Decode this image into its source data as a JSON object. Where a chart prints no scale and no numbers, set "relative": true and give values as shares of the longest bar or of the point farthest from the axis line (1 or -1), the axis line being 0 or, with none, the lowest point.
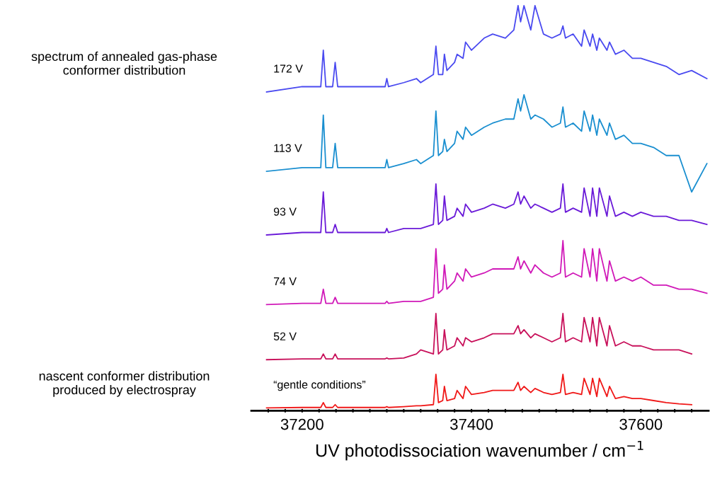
{
  "chart_data": {
    "type": "line",
    "relative": true,
    "xlabel": "UV photodissociation wavenumber / cm$^{−1}$",
    "annotations": [
      "spectrum of annealed gas-phase\nconformer distribution",
      "nascent conformer distribution\nproduced by electrospray"
    ],
    "xlim": [
      37140,
      37680
    ],
    "xticks": [
      {
        "value": 37160,
        "label": null
      },
      {
        "value": 37180,
        "label": null
      },
      37200,
      {
        "value": 37220,
        "label": null
      },
      {
        "value": 37240,
        "label": null
      },
      {
        "value": 37260,
        "label": null
      },
      {
        "value": 37280,
        "label": null
      },
      {
        "value": 37300,
        "label": null
      },
      {
        "value": 37320,
        "label": null
      },
      {
        "value": 37340,
        "label": null
      },
      {
        "value": 37360,
        "label": null
      },
      {
        "value": 37380,
        "label": null
      },
      37400,
      {
        "value": 37420,
        "label": null
      },
      {
        "value": 37440,
        "label": null
      },
      {
        "value": 37460,
        "label": null
      },
      {
        "value": 37480,
        "label": null
      },
      {
        "value": 37500,
        "label": null
      },
      {
        "value": 37520,
        "label": null
      },
      {
        "value": 37540,
        "label": null
      },
      {
        "value": 37560,
        "label": null
      },
      {
        "value": 37580,
        "label": null
      },
      37600,
      {
        "value": 37620,
        "label": null
      },
      {
        "value": 37640,
        "label": null
      },
      {
        "value": 37660,
        "label": null
      }
    ],
    "grid": false,
    "legend": false,
    "marker": "none",
    "line_style": "solid",
    "x": [
      37158,
      37200,
      37222,
      37225,
      37228,
      37236,
      37239,
      37242,
      37270,
      37298,
      37300,
      37302,
      37320,
      37335,
      37340,
      37355,
      37358,
      37361,
      37366,
      37368,
      37371,
      37380,
      37383,
      37390,
      37393,
      37400,
      37415,
      37425,
      37440,
      37450,
      37455,
      37458,
      37462,
      37470,
      37475,
      37485,
      37495,
      37505,
      37508,
      37511,
      37520,
      37530,
      37533,
      37540,
      37543,
      37548,
      37551,
      37560,
      37563,
      37570,
      37580,
      37590,
      37600,
      37615,
      37630,
      37645,
      37660,
      37678
    ],
    "series": [
      {
        "name": "172 V",
        "color": "#4a4af0",
        "values": [
          0.787,
          0.8,
          0.8,
          0.89,
          0.8,
          0.8,
          0.86,
          0.8,
          0.8,
          0.8,
          0.82,
          0.8,
          0.81,
          0.82,
          0.81,
          0.83,
          0.9,
          0.83,
          0.83,
          0.88,
          0.84,
          0.86,
          0.88,
          0.87,
          0.91,
          0.89,
          0.92,
          0.93,
          0.92,
          0.94,
          1.0,
          0.96,
          1.0,
          0.94,
          1.0,
          0.93,
          0.92,
          0.93,
          0.95,
          0.92,
          0.93,
          0.9,
          0.94,
          0.9,
          0.93,
          0.89,
          0.92,
          0.89,
          0.91,
          0.88,
          0.89,
          0.87,
          0.87,
          0.86,
          0.85,
          0.83,
          0.84,
          0.82
        ]
      },
      {
        "name": "113 V",
        "color": "#1a8fd0",
        "values": [
          0.591,
          0.6,
          0.6,
          0.73,
          0.6,
          0.6,
          0.66,
          0.6,
          0.6,
          0.6,
          0.62,
          0.6,
          0.61,
          0.62,
          0.61,
          0.63,
          0.74,
          0.63,
          0.64,
          0.67,
          0.64,
          0.66,
          0.69,
          0.67,
          0.7,
          0.68,
          0.7,
          0.71,
          0.72,
          0.72,
          0.77,
          0.74,
          0.78,
          0.72,
          0.73,
          0.72,
          0.7,
          0.71,
          0.75,
          0.7,
          0.71,
          0.69,
          0.74,
          0.69,
          0.73,
          0.68,
          0.72,
          0.68,
          0.71,
          0.67,
          0.68,
          0.66,
          0.66,
          0.65,
          0.63,
          0.63,
          0.54,
          0.61
        ]
      },
      {
        "name": "93 V",
        "color": "#6a1ad8",
        "values": [
          0.434,
          0.44,
          0.44,
          0.54,
          0.44,
          0.44,
          0.46,
          0.44,
          0.44,
          0.44,
          0.45,
          0.44,
          0.45,
          0.45,
          0.45,
          0.46,
          0.56,
          0.46,
          0.47,
          0.53,
          0.47,
          0.48,
          0.5,
          0.48,
          0.51,
          0.49,
          0.5,
          0.51,
          0.5,
          0.51,
          0.54,
          0.51,
          0.53,
          0.5,
          0.51,
          0.5,
          0.49,
          0.5,
          0.56,
          0.49,
          0.5,
          0.49,
          0.55,
          0.48,
          0.55,
          0.48,
          0.55,
          0.48,
          0.53,
          0.48,
          0.49,
          0.48,
          0.49,
          0.48,
          0.48,
          0.47,
          0.47,
          0.46
        ]
      },
      {
        "name": "74 V",
        "color": "#d018b8",
        "values": [
          0.262,
          0.265,
          0.265,
          0.3,
          0.265,
          0.265,
          0.28,
          0.265,
          0.265,
          0.265,
          0.27,
          0.265,
          0.27,
          0.27,
          0.27,
          0.28,
          0.4,
          0.29,
          0.3,
          0.36,
          0.3,
          0.32,
          0.34,
          0.32,
          0.35,
          0.33,
          0.34,
          0.35,
          0.35,
          0.35,
          0.38,
          0.35,
          0.37,
          0.34,
          0.36,
          0.34,
          0.33,
          0.34,
          0.42,
          0.33,
          0.34,
          0.33,
          0.4,
          0.33,
          0.4,
          0.32,
          0.4,
          0.32,
          0.37,
          0.32,
          0.33,
          0.32,
          0.33,
          0.31,
          0.31,
          0.3,
          0.3,
          0.29
        ]
      },
      {
        "name": "52 V",
        "color": "#c8105a",
        "values": [
          0.126,
          0.128,
          0.128,
          0.14,
          0.128,
          0.128,
          0.14,
          0.128,
          0.128,
          0.128,
          0.13,
          0.128,
          0.13,
          0.14,
          0.15,
          0.14,
          0.24,
          0.14,
          0.15,
          0.2,
          0.15,
          0.16,
          0.18,
          0.16,
          0.18,
          0.17,
          0.18,
          0.19,
          0.19,
          0.19,
          0.21,
          0.19,
          0.2,
          0.18,
          0.19,
          0.18,
          0.17,
          0.18,
          0.24,
          0.17,
          0.18,
          0.17,
          0.23,
          0.17,
          0.23,
          0.16,
          0.23,
          0.16,
          0.21,
          0.16,
          0.17,
          0.16,
          0.16,
          0.15,
          0.15,
          0.15,
          0.14,
          null
        ]
      },
      {
        "name": "“gentle conditions”",
        "color": "#f01818",
        "values": [
          0.007,
          0.008,
          0.008,
          0.02,
          0.008,
          0.008,
          0.015,
          0.008,
          0.008,
          0.008,
          0.01,
          0.008,
          0.01,
          0.012,
          0.012,
          0.015,
          0.09,
          0.02,
          0.025,
          0.06,
          0.025,
          0.03,
          0.05,
          0.03,
          0.06,
          0.04,
          0.045,
          0.05,
          0.05,
          0.05,
          0.07,
          0.05,
          0.06,
          0.045,
          0.055,
          0.045,
          0.04,
          0.045,
          0.09,
          0.04,
          0.045,
          0.04,
          0.08,
          0.04,
          0.08,
          0.035,
          0.08,
          0.035,
          0.06,
          0.03,
          0.035,
          0.03,
          0.03,
          0.025,
          0.02,
          0.017,
          0.015,
          null
        ]
      }
    ]
  }
}
